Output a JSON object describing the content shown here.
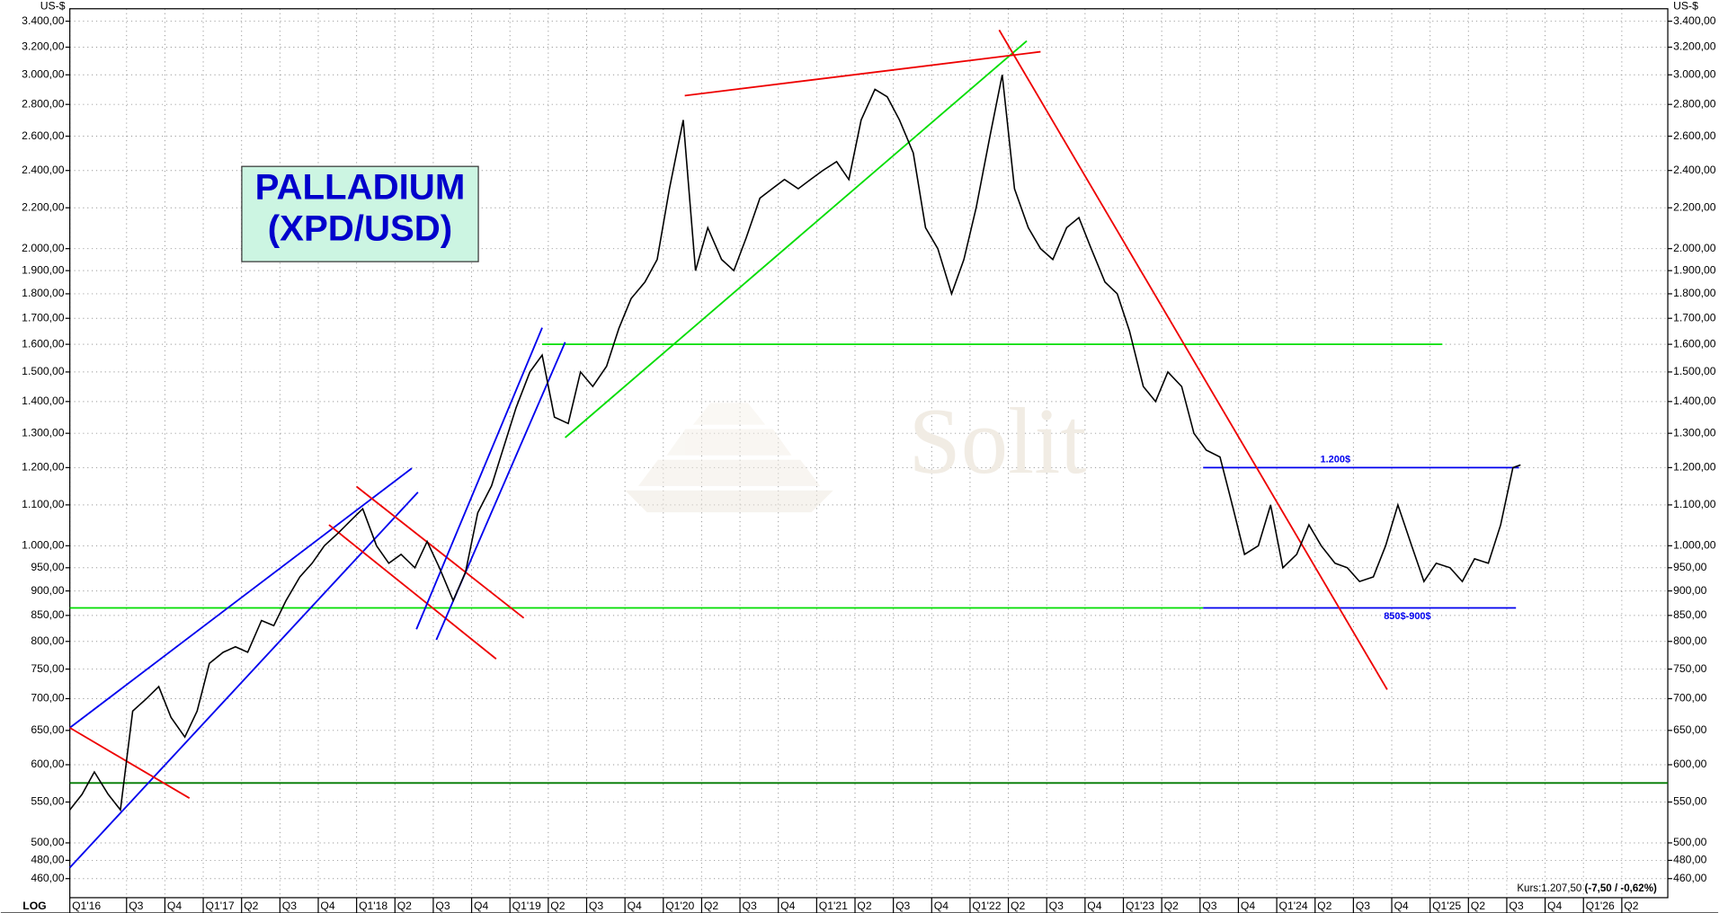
{
  "chart_data": {
    "type": "line",
    "title": "PALLADIUM",
    "subtitle": "(XPD/USD)",
    "y_unit": "US-$",
    "scale_label": "LOG",
    "log_scale": true,
    "grid": true,
    "watermark": "Solit",
    "price_label": "Kurs:1.207,50",
    "change_label": "(-7,50 / -0,62%)",
    "color": "#000000",
    "xlim": [
      2016.13,
      2026.55
    ],
    "ylim": [
      440,
      3500
    ],
    "xticks": [
      {
        "value": 2016.13,
        "label": "Q1'16"
      },
      {
        "value": 2016.5,
        "label": "Q3"
      },
      {
        "value": 2016.75,
        "label": "Q4"
      },
      {
        "value": 2017,
        "label": "Q1'17"
      },
      {
        "value": 2017.25,
        "label": "Q2"
      },
      {
        "value": 2017.5,
        "label": "Q3"
      },
      {
        "value": 2017.75,
        "label": "Q4"
      },
      {
        "value": 2018,
        "label": "Q1'18"
      },
      {
        "value": 2018.25,
        "label": "Q2"
      },
      {
        "value": 2018.5,
        "label": "Q3"
      },
      {
        "value": 2018.75,
        "label": "Q4"
      },
      {
        "value": 2019,
        "label": "Q1'19"
      },
      {
        "value": 2019.25,
        "label": "Q2"
      },
      {
        "value": 2019.5,
        "label": "Q3"
      },
      {
        "value": 2019.75,
        "label": "Q4"
      },
      {
        "value": 2020,
        "label": "Q1'20"
      },
      {
        "value": 2020.25,
        "label": "Q2"
      },
      {
        "value": 2020.5,
        "label": "Q3"
      },
      {
        "value": 2020.75,
        "label": "Q4"
      },
      {
        "value": 2021,
        "label": "Q1'21"
      },
      {
        "value": 2021.25,
        "label": "Q2"
      },
      {
        "value": 2021.5,
        "label": "Q3"
      },
      {
        "value": 2021.75,
        "label": "Q4"
      },
      {
        "value": 2022,
        "label": "Q1'22"
      },
      {
        "value": 2022.25,
        "label": "Q2"
      },
      {
        "value": 2022.5,
        "label": "Q3"
      },
      {
        "value": 2022.75,
        "label": "Q4"
      },
      {
        "value": 2023,
        "label": "Q1'23"
      },
      {
        "value": 2023.25,
        "label": "Q2"
      },
      {
        "value": 2023.5,
        "label": "Q3"
      },
      {
        "value": 2023.75,
        "label": "Q4"
      },
      {
        "value": 2024,
        "label": "Q1'24"
      },
      {
        "value": 2024.25,
        "label": "Q2"
      },
      {
        "value": 2024.5,
        "label": "Q3"
      },
      {
        "value": 2024.75,
        "label": "Q4"
      },
      {
        "value": 2025,
        "label": "Q1'25"
      },
      {
        "value": 2025.25,
        "label": "Q2"
      },
      {
        "value": 2025.5,
        "label": "Q3"
      },
      {
        "value": 2025.75,
        "label": "Q4"
      },
      {
        "value": 2026,
        "label": "Q1'26"
      },
      {
        "value": 2026.25,
        "label": "Q2"
      }
    ],
    "yticks": [
      {
        "value": 460,
        "label": "460,00"
      },
      {
        "value": 480,
        "label": "480,00"
      },
      {
        "value": 500,
        "label": "500,00"
      },
      {
        "value": 550,
        "label": "550,00"
      },
      {
        "value": 600,
        "label": "600,00"
      },
      {
        "value": 650,
        "label": "650,00"
      },
      {
        "value": 700,
        "label": "700,00"
      },
      {
        "value": 750,
        "label": "750,00"
      },
      {
        "value": 800,
        "label": "800,00"
      },
      {
        "value": 850,
        "label": "850,00"
      },
      {
        "value": 900,
        "label": "900,00"
      },
      {
        "value": 950,
        "label": "950,00"
      },
      {
        "value": 1000,
        "label": "1.000,00"
      },
      {
        "value": 1100,
        "label": "1.100,00"
      },
      {
        "value": 1200,
        "label": "1.200,00"
      },
      {
        "value": 1300,
        "label": "1.300,00"
      },
      {
        "value": 1400,
        "label": "1.400,00"
      },
      {
        "value": 1500,
        "label": "1.500,00"
      },
      {
        "value": 1600,
        "label": "1.600,00"
      },
      {
        "value": 1700,
        "label": "1.700,00"
      },
      {
        "value": 1800,
        "label": "1.800,00"
      },
      {
        "value": 1900,
        "label": "1.900,00"
      },
      {
        "value": 2000,
        "label": "2.000,00"
      },
      {
        "value": 2200,
        "label": "2.200,00"
      },
      {
        "value": 2400,
        "label": "2.400,00"
      },
      {
        "value": 2600,
        "label": "2.600,00"
      },
      {
        "value": 2800,
        "label": "2.800,00"
      },
      {
        "value": 3000,
        "label": "3.000,00"
      },
      {
        "value": 3200,
        "label": "3.200,00"
      },
      {
        "value": 3400,
        "label": "3.400,00"
      }
    ],
    "x": [
      2016.13,
      2016.21,
      2016.29,
      2016.38,
      2016.46,
      2016.54,
      2016.63,
      2016.71,
      2016.79,
      2016.88,
      2016.96,
      2017.04,
      2017.13,
      2017.21,
      2017.29,
      2017.38,
      2017.46,
      2017.54,
      2017.63,
      2017.71,
      2017.79,
      2017.88,
      2017.96,
      2018.04,
      2018.13,
      2018.21,
      2018.29,
      2018.38,
      2018.46,
      2018.54,
      2018.63,
      2018.71,
      2018.79,
      2018.88,
      2018.96,
      2019.04,
      2019.13,
      2019.21,
      2019.29,
      2019.38,
      2019.46,
      2019.54,
      2019.63,
      2019.71,
      2019.79,
      2019.88,
      2019.96,
      2020.04,
      2020.13,
      2020.21,
      2020.29,
      2020.38,
      2020.46,
      2020.54,
      2020.63,
      2020.71,
      2020.79,
      2020.88,
      2020.96,
      2021.04,
      2021.13,
      2021.21,
      2021.29,
      2021.38,
      2021.46,
      2021.54,
      2021.63,
      2021.71,
      2021.79,
      2021.88,
      2021.96,
      2022.04,
      2022.13,
      2022.21,
      2022.29,
      2022.38,
      2022.46,
      2022.54,
      2022.63,
      2022.71,
      2022.79,
      2022.88,
      2022.96,
      2023.04,
      2023.13,
      2023.21,
      2023.29,
      2023.38,
      2023.46,
      2023.54,
      2023.63,
      2023.71,
      2023.79,
      2023.88,
      2023.96,
      2024.04,
      2024.13,
      2024.21,
      2024.29,
      2024.38,
      2024.46,
      2024.54,
      2024.63,
      2024.71,
      2024.79,
      2024.88,
      2024.96,
      2025.04,
      2025.13,
      2025.21,
      2025.29,
      2025.38,
      2025.46,
      2025.54,
      2025.59
    ],
    "values": [
      540,
      560,
      590,
      560,
      540,
      680,
      700,
      720,
      670,
      640,
      680,
      760,
      780,
      790,
      780,
      840,
      830,
      880,
      930,
      960,
      1000,
      1030,
      1060,
      1090,
      1000,
      960,
      980,
      950,
      1010,
      950,
      880,
      940,
      1080,
      1150,
      1260,
      1380,
      1500,
      1560,
      1350,
      1330,
      1500,
      1450,
      1520,
      1660,
      1780,
      1850,
      1950,
      2300,
      2700,
      1900,
      2100,
      1950,
      1900,
      2050,
      2250,
      2300,
      2350,
      2300,
      2350,
      2400,
      2450,
      2350,
      2700,
      2900,
      2850,
      2700,
      2500,
      2100,
      2000,
      1800,
      1950,
      2200,
      2600,
      3000,
      2300,
      2100,
      2000,
      1950,
      2100,
      2150,
      2000,
      1850,
      1800,
      1650,
      1450,
      1400,
      1500,
      1450,
      1300,
      1250,
      1230,
      1100,
      980,
      1000,
      1100,
      950,
      980,
      1050,
      1000,
      960,
      950,
      920,
      930,
      1000,
      1100,
      1000,
      920,
      960,
      950,
      920,
      970,
      960,
      1050,
      1200,
      1207.5
    ],
    "levels": [
      {
        "value": 1600,
        "x": [
          2019.21,
          2025.08
        ],
        "color": "#00dd00"
      },
      {
        "value": 865,
        "x": [
          2016.13,
          2023.52
        ],
        "color": "#00dd00"
      },
      {
        "value": 865,
        "x": [
          2023.52,
          2025.56
        ],
        "color": "#0000ee",
        "label": "850$-900$"
      },
      {
        "value": 1200,
        "x": [
          2023.52,
          2025.58
        ],
        "color": "#0000ee",
        "label": "1.200$"
      },
      {
        "value": 575,
        "x": [
          2016.13,
          2026.55
        ],
        "color": "#007a00"
      }
    ],
    "trendlines": [
      {
        "x": [
          2016.13,
          2018.36
        ],
        "y": [
          654,
          1198
        ],
        "color": "#0000ee"
      },
      {
        "x": [
          2016.13,
          2018.4
        ],
        "y": [
          472,
          1133
        ],
        "color": "#0000ee"
      },
      {
        "x": [
          2016.13,
          2016.91
        ],
        "y": [
          654,
          555
        ],
        "color": "#ee0000"
      },
      {
        "x": [
          2018.0,
          2019.09
        ],
        "y": [
          1148,
          845
        ],
        "color": "#ee0000"
      },
      {
        "x": [
          2017.82,
          2018.91
        ],
        "y": [
          1050,
          768
        ],
        "color": "#ee0000"
      },
      {
        "x": [
          2018.39,
          2019.21
        ],
        "y": [
          823,
          1663
        ],
        "color": "#0000ee"
      },
      {
        "x": [
          2018.52,
          2019.36
        ],
        "y": [
          803,
          1608
        ],
        "color": "#0000ee"
      },
      {
        "x": [
          2019.36,
          2022.37
        ],
        "y": [
          1287,
          3247
        ],
        "color": "#00dd00"
      },
      {
        "x": [
          2020.14,
          2022.46
        ],
        "y": [
          2858,
          3166
        ],
        "color": "#ee0000"
      },
      {
        "x": [
          2022.19,
          2024.72
        ],
        "y": [
          3331,
          715
        ],
        "color": "#ee0000"
      }
    ]
  }
}
